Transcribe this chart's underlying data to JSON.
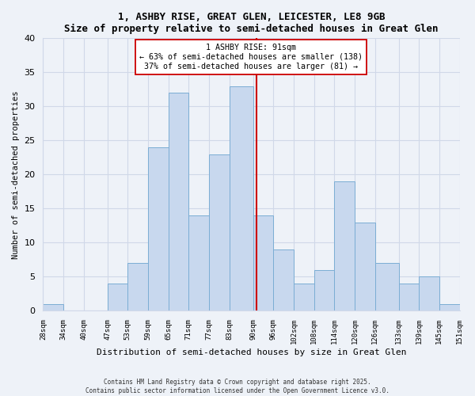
{
  "title": "1, ASHBY RISE, GREAT GLEN, LEICESTER, LE8 9GB",
  "subtitle": "Size of property relative to semi-detached houses in Great Glen",
  "xlabel": "Distribution of semi-detached houses by size in Great Glen",
  "ylabel": "Number of semi-detached properties",
  "bin_labels": [
    "28sqm",
    "34sqm",
    "40sqm",
    "47sqm",
    "53sqm",
    "59sqm",
    "65sqm",
    "71sqm",
    "77sqm",
    "83sqm",
    "90sqm",
    "96sqm",
    "102sqm",
    "108sqm",
    "114sqm",
    "120sqm",
    "126sqm",
    "133sqm",
    "139sqm",
    "145sqm",
    "151sqm"
  ],
  "bin_edges": [
    28,
    34,
    40,
    47,
    53,
    59,
    65,
    71,
    77,
    83,
    90,
    96,
    102,
    108,
    114,
    120,
    126,
    133,
    139,
    145,
    151
  ],
  "bar_heights": [
    1,
    0,
    0,
    4,
    7,
    24,
    32,
    14,
    23,
    33,
    14,
    9,
    4,
    6,
    19,
    13,
    7,
    4,
    5,
    1
  ],
  "bar_color": "#c8d8ee",
  "bar_edge_color": "#7badd4",
  "property_size": 91,
  "vline_color": "#cc0000",
  "annotation_title": "1 ASHBY RISE: 91sqm",
  "annotation_line1": "← 63% of semi-detached houses are smaller (138)",
  "annotation_line2": "37% of semi-detached houses are larger (81) →",
  "ylim": [
    0,
    40
  ],
  "yticks": [
    0,
    5,
    10,
    15,
    20,
    25,
    30,
    35,
    40
  ],
  "grid_color": "#d0d8e8",
  "background_color": "#eef2f8",
  "footer1": "Contains HM Land Registry data © Crown copyright and database right 2025.",
  "footer2": "Contains public sector information licensed under the Open Government Licence v3.0."
}
